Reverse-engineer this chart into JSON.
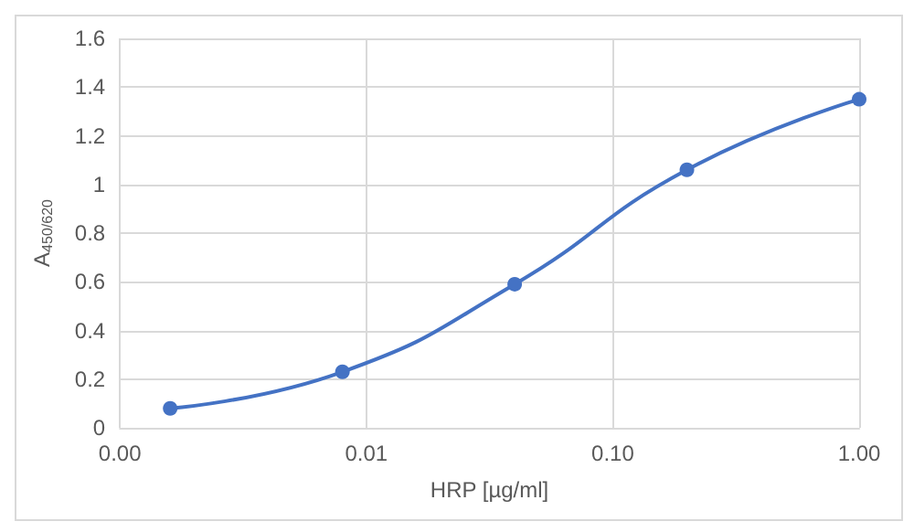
{
  "chart_data": {
    "type": "line",
    "xlabel": "HRP [µg/ml]",
    "ylabel": "A$_{450/620}$",
    "x": [
      0.0016,
      0.008,
      0.04,
      0.2,
      1.0
    ],
    "series": [
      {
        "color": "#4472c4",
        "values": [
          0.08,
          0.23,
          0.59,
          1.06,
          1.35
        ]
      }
    ],
    "log": "x",
    "xlim": [
      0.001,
      1
    ],
    "xticks": [
      {
        "value": 0.001,
        "label": "0.00"
      },
      0.01,
      {
        "value": 0.1,
        "label": "0.10"
      },
      {
        "value": 1,
        "label": "1.00"
      }
    ],
    "ylim": [
      0,
      1.6
    ],
    "yticks": [
      0,
      0.2,
      0.4,
      0.6,
      0.8,
      1,
      1.2,
      1.4,
      1.6
    ],
    "grid": true,
    "marker": "circle",
    "line_style": "solid"
  }
}
